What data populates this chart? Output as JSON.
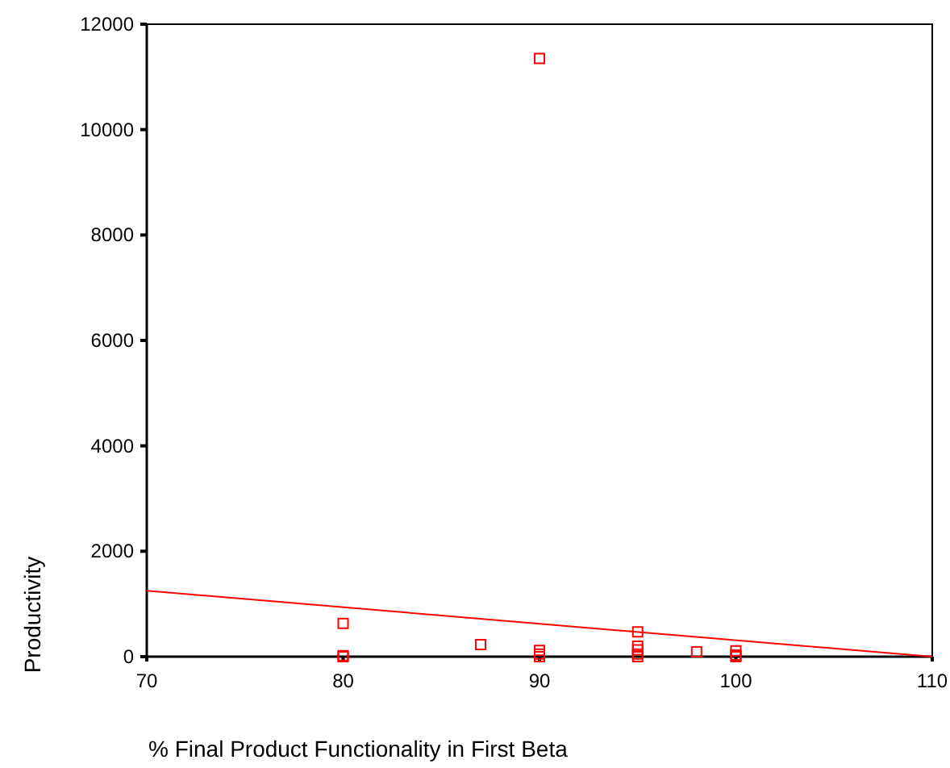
{
  "chart_data": {
    "type": "scatter",
    "xlabel": "% Final Product Functionality in First Beta",
    "ylabel": "Productivity",
    "xlim": [
      70,
      110
    ],
    "ylim": [
      0,
      12000
    ],
    "xticks": [
      70,
      80,
      90,
      100,
      110
    ],
    "yticks": [
      0,
      2000,
      4000,
      6000,
      8000,
      10000,
      12000
    ],
    "grid": false,
    "series": [
      {
        "color": "#ff0000",
        "marker": "square",
        "x": [
          90,
          80,
          80,
          80,
          87,
          90,
          90,
          90,
          95,
          95,
          95,
          95,
          95,
          98,
          100,
          100,
          100
        ],
        "values": [
          11350,
          630,
          20,
          0,
          230,
          120,
          50,
          0,
          470,
          200,
          130,
          50,
          0,
          90,
          110,
          30,
          0
        ]
      },
      {
        "type": "line",
        "color": "#ff0000",
        "x": [
          70,
          110
        ],
        "values": [
          1250,
          0
        ]
      }
    ]
  }
}
